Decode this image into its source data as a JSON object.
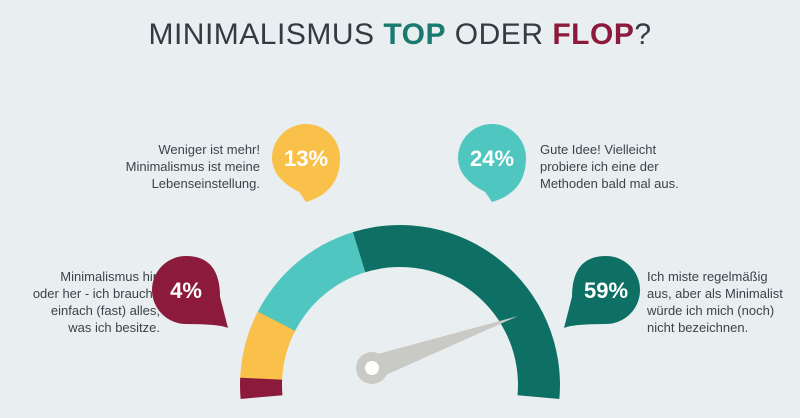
{
  "title": {
    "part1": "MINIMALISMUS ",
    "part2": "TOP",
    "part3": " ODER ",
    "part4": "FLOP",
    "part5": "?",
    "top_color": "#1a7a6e",
    "flop_color": "#8c1a3c"
  },
  "chart_data": {
    "type": "gauge",
    "categories": [
      "Minimalismus hin oder her - ich brauche einfach (fast) alles, was ich besitze.",
      "Weniger ist mehr! Minimalismus ist meine Lebenseinstellung.",
      "Gute Idee! Vielleicht probiere ich eine der Methoden bald mal aus.",
      "Ich miste regelmäßig aus, aber als Minimalist würde ich mich (noch) nicht bezeichnen."
    ],
    "values": [
      4,
      13,
      24,
      59
    ],
    "value_labels": [
      "4%",
      "13%",
      "24%",
      "59%"
    ],
    "colors": [
      "#8c1a3c",
      "#f9c04a",
      "#4fc6c0",
      "#0e7065"
    ],
    "needle_color": "#c9c9c6"
  },
  "labels": {
    "flop": [
      "Minimalismus hin",
      "oder her - ich brauche",
      "einfach (fast) alles,",
      "was ich besitze."
    ],
    "weniger": [
      "Weniger ist mehr!",
      "Minimalismus ist meine",
      "Lebenseinstellung."
    ],
    "gute": [
      "Gute Idee! Vielleicht",
      "probiere ich eine der",
      "Methoden bald mal aus."
    ],
    "miste": [
      "Ich miste regelmäßig",
      "aus, aber als Minimalist",
      "würde ich mich (noch)",
      "nicht bezeichnen."
    ]
  }
}
